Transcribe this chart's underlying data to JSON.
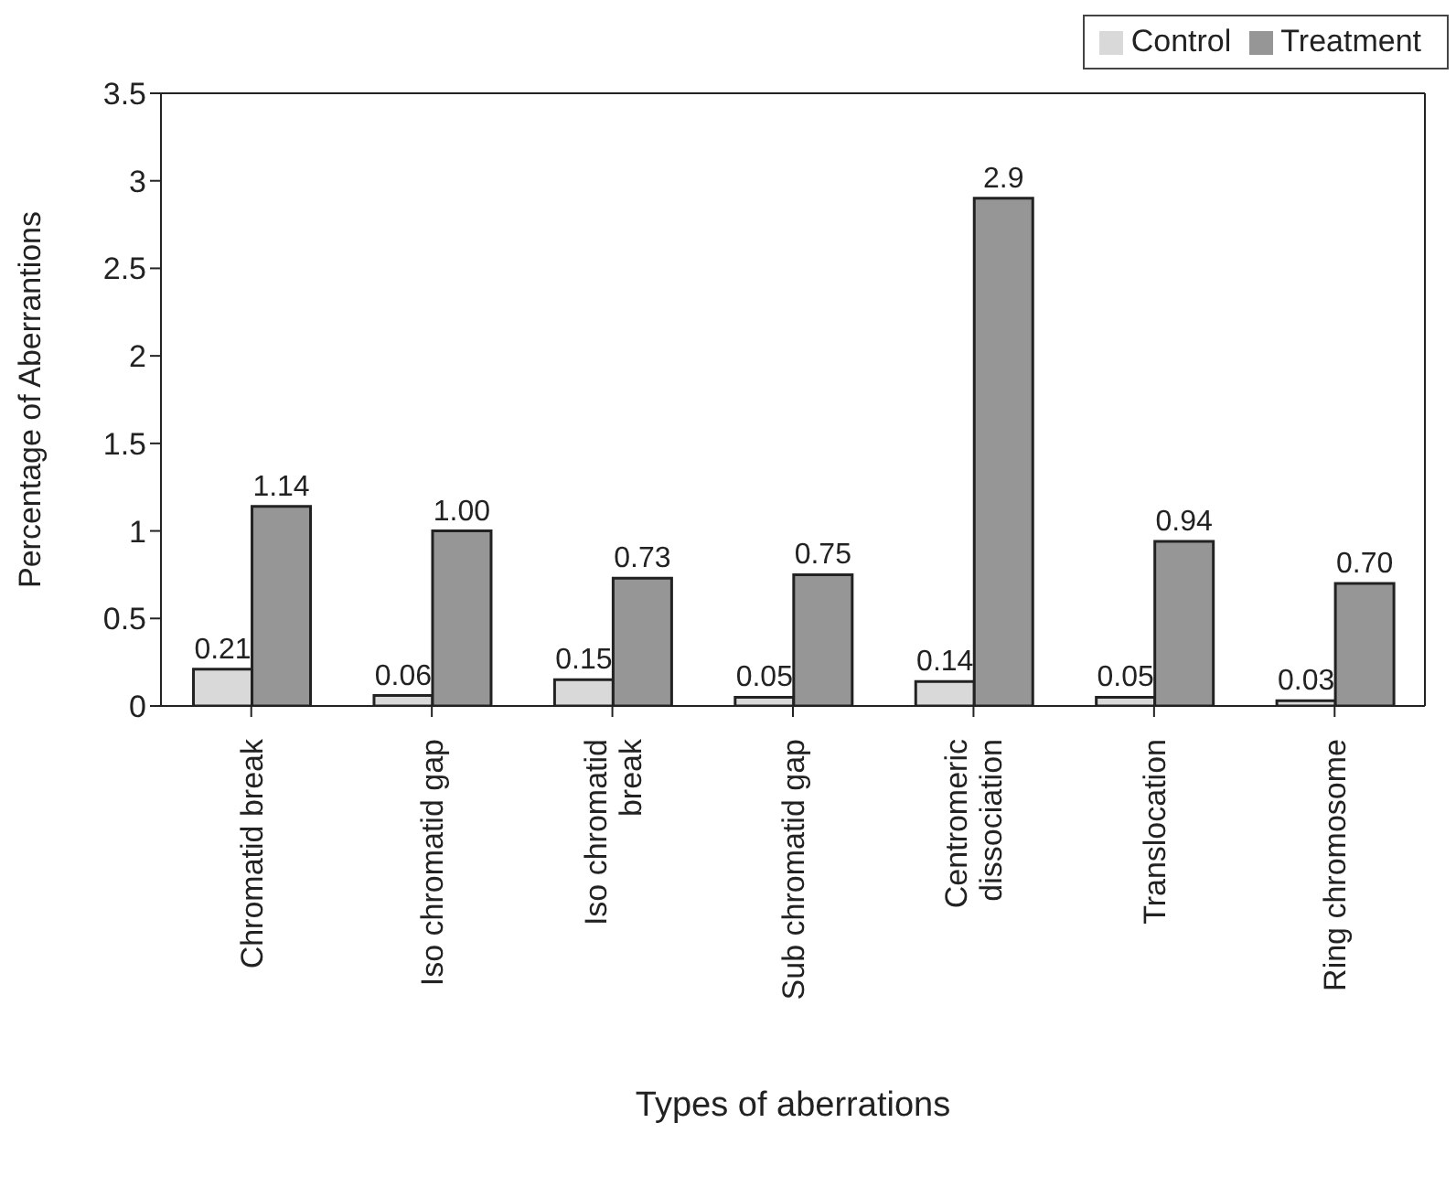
{
  "chart_data": {
    "type": "bar",
    "xlabel": "Types of aberrations",
    "ylabel": "Percentage of Aberrantions",
    "categories": [
      "Chromatid break",
      "Iso chromatid gap",
      "Iso chromatid break",
      "Sub chromatid gap",
      "Centromeric dissociation",
      "Translocation",
      "Ring chromosome"
    ],
    "series": [
      {
        "name": "Control",
        "color": "#d9d9d9",
        "values": [
          0.21,
          0.06,
          0.15,
          0.05,
          0.14,
          0.05,
          0.03
        ],
        "value_labels": [
          "0.21",
          "0.06",
          "0.15",
          "0.05",
          "0.14",
          "0.05",
          "0.03"
        ]
      },
      {
        "name": "Treatment",
        "color": "#969696",
        "values": [
          1.14,
          1.0,
          0.73,
          0.75,
          2.9,
          0.94,
          0.7
        ],
        "value_labels": [
          "1.14",
          "1.00",
          "0.73",
          "0.75",
          "2.9",
          "0.94",
          "0.70"
        ]
      }
    ],
    "ylim": [
      0,
      3.5
    ],
    "yticks": [
      0,
      0.5,
      1,
      1.5,
      2,
      2.5,
      3,
      3.5
    ],
    "grid": false,
    "legend": "top right"
  }
}
